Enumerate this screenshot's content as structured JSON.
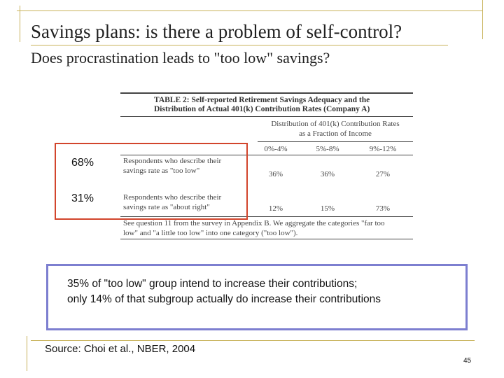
{
  "slide": {
    "title": "Savings plans: is there a problem of self-control?",
    "subtitle": "Does procrastination leads to \"too low\" savings?",
    "accent_color": "#c8b25a",
    "page_number": "45"
  },
  "table": {
    "title_line1": "TABLE 2: Self-reported Retirement Savings Adequacy and the",
    "title_line2": "Distribution of Actual 401(k) Contribution Rates (Company A)",
    "dist_head_line1": "Distribution of 401(k) Contribution Rates",
    "dist_head_line2": "as a Fraction of Income",
    "columns": [
      "0%-4%",
      "5%-8%",
      "9%-12%"
    ],
    "rows": [
      {
        "label_line1": "Respondents who describe their",
        "label_line2": "savings rate as \"too low\"",
        "values": [
          "36%",
          "36%",
          "27%"
        ]
      },
      {
        "label_line1": "Respondents who describe their",
        "label_line2": "savings rate as \"about right\"",
        "values": [
          "12%",
          "15%",
          "73%"
        ]
      }
    ],
    "note_line1": "See question 11 from the survey in Appendix B. We aggregate the categories \"far too",
    "note_line2": "low\" and \"a little too low\" into one category (\"too low\")."
  },
  "annotations": {
    "too_low_share": "68%",
    "about_right_share": "31%",
    "callout_line1": "35% of \"too low\" group intend to increase their contributions;",
    "callout_line2": "only 14% of that subgroup actually do increase their contributions",
    "highlight_color": "#d2452c",
    "callout_border_color": "#7d7fd0"
  },
  "source": "Source: Choi et al., NBER, 2004"
}
